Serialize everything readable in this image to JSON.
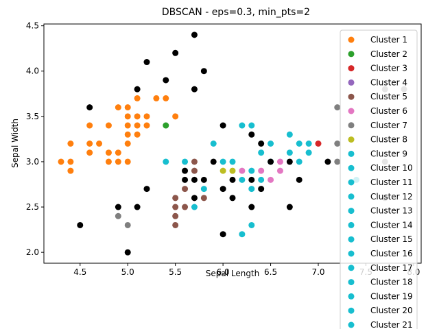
{
  "chart_data": {
    "type": "scatter",
    "title": "DBSCAN - eps=0.3, min_pts=2",
    "xlabel": "Sepal Length",
    "ylabel": "Sepal Width",
    "xlim": [
      4.12,
      8.08
    ],
    "ylim": [
      1.88,
      4.52
    ],
    "xticks": [
      "4.5",
      "5.0",
      "5.5",
      "6.0",
      "6.5",
      "7.0",
      "7.5",
      "8.0"
    ],
    "yticks": [
      "2.0",
      "2.5",
      "3.0",
      "3.5",
      "4.0",
      "4.5"
    ],
    "grid": false,
    "legend_position": "top-right",
    "noise_color": "#000000",
    "series": [
      {
        "name": "Cluster 1",
        "color": "#ff7f0e",
        "points": [
          [
            4.3,
            3.0
          ],
          [
            4.4,
            2.9
          ],
          [
            4.4,
            3.0
          ],
          [
            4.4,
            3.2
          ],
          [
            4.6,
            3.1
          ],
          [
            4.6,
            3.2
          ],
          [
            4.6,
            3.4
          ],
          [
            4.7,
            3.2
          ],
          [
            4.8,
            3.0
          ],
          [
            4.8,
            3.1
          ],
          [
            4.8,
            3.4
          ],
          [
            4.9,
            3.0
          ],
          [
            4.9,
            3.1
          ],
          [
            4.9,
            3.6
          ],
          [
            5.0,
            3.0
          ],
          [
            5.0,
            3.2
          ],
          [
            5.0,
            3.3
          ],
          [
            5.0,
            3.4
          ],
          [
            5.0,
            3.5
          ],
          [
            5.0,
            3.6
          ],
          [
            5.1,
            3.3
          ],
          [
            5.1,
            3.4
          ],
          [
            5.1,
            3.5
          ],
          [
            5.1,
            3.7
          ],
          [
            5.2,
            3.4
          ],
          [
            5.2,
            3.5
          ],
          [
            5.3,
            3.7
          ],
          [
            5.4,
            3.7
          ],
          [
            5.5,
            3.5
          ]
        ]
      },
      {
        "name": "Cluster 2",
        "color": "#2ca02c",
        "points": [
          [
            5.4,
            3.4
          ]
        ]
      },
      {
        "name": "Cluster 3",
        "color": "#d62728",
        "points": [
          [
            7.0,
            3.2
          ]
        ]
      },
      {
        "name": "Cluster 4",
        "color": "#9467bd",
        "points": []
      },
      {
        "name": "Cluster 5",
        "color": "#8c564b",
        "points": [
          [
            5.5,
            2.3
          ],
          [
            5.5,
            2.4
          ],
          [
            5.5,
            2.5
          ],
          [
            5.5,
            2.6
          ],
          [
            5.6,
            2.5
          ],
          [
            5.6,
            2.7
          ],
          [
            5.7,
            2.9
          ],
          [
            5.7,
            3.0
          ],
          [
            5.8,
            2.6
          ]
        ]
      },
      {
        "name": "Cluster 6",
        "color": "#e377c2",
        "points": [
          [
            6.2,
            2.9
          ],
          [
            6.4,
            2.9
          ],
          [
            6.5,
            2.8
          ],
          [
            6.6,
            2.9
          ],
          [
            6.6,
            3.0
          ]
        ]
      },
      {
        "name": "Cluster 7",
        "color": "#7f7f7f",
        "points": [
          [
            4.9,
            2.4
          ],
          [
            5.0,
            2.3
          ],
          [
            7.2,
            3.0
          ],
          [
            7.2,
            3.2
          ],
          [
            7.2,
            3.6
          ],
          [
            7.7,
            2.6
          ],
          [
            7.7,
            3.0
          ],
          [
            7.7,
            3.8
          ],
          [
            7.9,
            3.8
          ]
        ]
      },
      {
        "name": "Cluster 8",
        "color": "#bcbd22",
        "points": [
          [
            6.0,
            2.9
          ],
          [
            6.1,
            2.9
          ]
        ]
      },
      {
        "name": "Cluster 9",
        "color": "#17becf",
        "points": [
          [
            5.4,
            3.0
          ],
          [
            5.6,
            3.0
          ],
          [
            5.7,
            2.5
          ],
          [
            5.8,
            2.7
          ],
          [
            5.9,
            3.2
          ],
          [
            6.0,
            3.0
          ],
          [
            6.1,
            3.0
          ],
          [
            6.2,
            2.2
          ],
          [
            6.2,
            2.8
          ],
          [
            6.2,
            3.4
          ],
          [
            6.3,
            2.3
          ],
          [
            6.3,
            2.7
          ],
          [
            6.3,
            2.9
          ],
          [
            6.3,
            3.4
          ],
          [
            6.4,
            2.8
          ],
          [
            6.4,
            3.1
          ],
          [
            6.5,
            3.0
          ],
          [
            6.5,
            3.2
          ],
          [
            6.7,
            3.1
          ],
          [
            6.7,
            3.3
          ],
          [
            6.8,
            3.0
          ],
          [
            6.8,
            3.2
          ],
          [
            6.9,
            3.1
          ],
          [
            6.9,
            3.2
          ],
          [
            7.4,
            2.8
          ]
        ]
      },
      {
        "name": "Cluster 10",
        "color": "#17becf",
        "points": []
      },
      {
        "name": "Cluster 11",
        "color": "#17becf",
        "points": []
      },
      {
        "name": "Cluster 12",
        "color": "#17becf",
        "points": []
      },
      {
        "name": "Cluster 13",
        "color": "#17becf",
        "points": []
      },
      {
        "name": "Cluster 14",
        "color": "#17becf",
        "points": []
      },
      {
        "name": "Cluster 15",
        "color": "#17becf",
        "points": []
      },
      {
        "name": "Cluster 16",
        "color": "#17becf",
        "points": []
      },
      {
        "name": "Cluster 17",
        "color": "#17becf",
        "points": []
      },
      {
        "name": "Cluster 18",
        "color": "#17becf",
        "points": []
      },
      {
        "name": "Cluster 19",
        "color": "#17becf",
        "points": []
      },
      {
        "name": "Cluster 20",
        "color": "#17becf",
        "points": []
      },
      {
        "name": "Cluster 21",
        "color": "#17becf",
        "points": []
      }
    ],
    "noise_points": [
      [
        4.5,
        2.3
      ],
      [
        4.6,
        3.6
      ],
      [
        4.9,
        2.5
      ],
      [
        5.0,
        2.0
      ],
      [
        5.1,
        2.5
      ],
      [
        5.1,
        3.8
      ],
      [
        5.2,
        2.7
      ],
      [
        5.2,
        4.1
      ],
      [
        5.4,
        3.9
      ],
      [
        5.5,
        4.2
      ],
      [
        5.6,
        2.8
      ],
      [
        5.6,
        2.9
      ],
      [
        5.7,
        2.6
      ],
      [
        5.7,
        2.8
      ],
      [
        5.7,
        3.8
      ],
      [
        5.7,
        4.4
      ],
      [
        5.8,
        2.8
      ],
      [
        5.8,
        4.0
      ],
      [
        5.9,
        3.0
      ],
      [
        6.0,
        2.2
      ],
      [
        6.0,
        2.7
      ],
      [
        6.0,
        3.4
      ],
      [
        6.1,
        2.6
      ],
      [
        6.1,
        2.8
      ],
      [
        6.3,
        2.5
      ],
      [
        6.3,
        2.8
      ],
      [
        6.3,
        3.3
      ],
      [
        6.4,
        2.7
      ],
      [
        6.4,
        3.2
      ],
      [
        6.5,
        3.0
      ],
      [
        6.7,
        2.5
      ],
      [
        6.7,
        3.0
      ],
      [
        6.8,
        2.8
      ],
      [
        7.1,
        3.0
      ]
    ]
  }
}
